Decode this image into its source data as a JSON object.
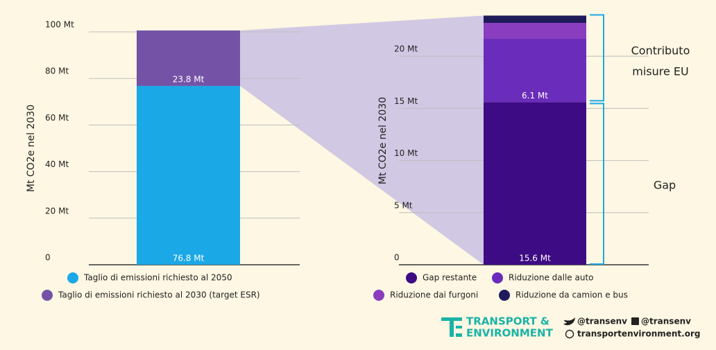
{
  "chart_data": [
    {
      "type": "stacked_bar",
      "y_label": "Mt CO2e nel 2030",
      "ylim": [
        0,
        100
      ],
      "yticks": [
        0,
        {
          "value": 20,
          "label": "20 Mt"
        },
        {
          "value": 40,
          "label": "40 Mt"
        },
        {
          "value": 60,
          "label": "60 Mt"
        },
        {
          "value": 80,
          "label": "80 Mt"
        },
        {
          "value": 100,
          "label": "100 Mt"
        }
      ],
      "grid": true,
      "series": [
        {
          "name": "Taglio di emissioni richiesto al 2050",
          "color": "#1ba8e6",
          "values": [
            76.8
          ],
          "value_labels": [
            "76.8 Mt"
          ]
        },
        {
          "name": "Taglio di emissioni richiesto al 2030 (target ESR)",
          "color": "#7453a6",
          "values": [
            23.8
          ],
          "value_labels": [
            "23.8 Mt"
          ]
        }
      ]
    },
    {
      "type": "stacked_bar",
      "y_label": "Mt CO2e nel 2030",
      "ylim": [
        0,
        23.8
      ],
      "yticks": [
        0,
        {
          "value": 5,
          "label": "5 Mt"
        },
        {
          "value": 10,
          "label": "10 Mt"
        },
        {
          "value": 15,
          "label": "15 Mt"
        },
        {
          "value": 20,
          "label": "20 Mt"
        }
      ],
      "grid": true,
      "series": [
        {
          "name": "Gap restante",
          "color": "#3d0b84",
          "values": [
            15.6
          ],
          "value_labels": [
            "15.6 Mt"
          ]
        },
        {
          "name": "Riduzione dalle auto",
          "color": "#6a2cba",
          "values": [
            6.1
          ],
          "value_labels": [
            "6.1 Mt"
          ]
        },
        {
          "name": "Riduzione dai furgoni",
          "color": "#8a3dbf",
          "values": [
            1.5
          ]
        },
        {
          "name": "Riduzione da camion e bus",
          "color": "#1f1b5b",
          "values": [
            0.7
          ]
        }
      ],
      "annotations": [
        "Contributo",
        "misure EU",
        "Gap"
      ]
    }
  ],
  "footer": {
    "brand_1": "TRANSPORT &",
    "brand_2": "ENVIRONMENT",
    "twitter": "@transenv",
    "facebook": "@transenv",
    "website": "transportenvironment.org"
  }
}
